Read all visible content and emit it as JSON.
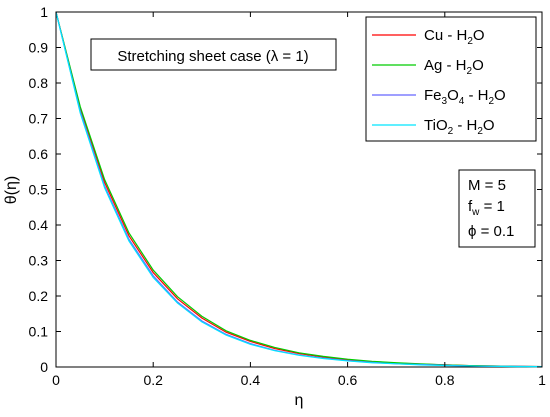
{
  "chart_data": {
    "type": "line",
    "xlabel": "η",
    "ylabel": "θ(η)",
    "xlim": [
      0,
      1
    ],
    "ylim": [
      0,
      1
    ],
    "xticks": [
      "0",
      "0.2",
      "0.4",
      "0.6",
      "0.8",
      "1"
    ],
    "yticks": [
      "0",
      "0.1",
      "0.2",
      "0.3",
      "0.4",
      "0.5",
      "0.6",
      "0.7",
      "0.8",
      "0.9",
      "1"
    ],
    "grid": false,
    "legend_position": "top-right",
    "annotation": "Stretching sheet case (λ = 1)",
    "parameters": {
      "M": "M = 5",
      "fw": "f",
      "fw_sub": "w",
      "fw_value": " = 1",
      "phi": "ϕ = 0.1"
    },
    "x": [
      0,
      0.05,
      0.1,
      0.15,
      0.2,
      0.25,
      0.3,
      0.35,
      0.4,
      0.45,
      0.5,
      0.55,
      0.6,
      0.65,
      0.7,
      0.75,
      0.8,
      0.85,
      0.9,
      0.95,
      1.0
    ],
    "series": [
      {
        "legend": [
          "Cu - H",
          "2",
          "O"
        ],
        "color": "#ff0000",
        "values": [
          1.0,
          0.728,
          0.52,
          0.37,
          0.266,
          0.192,
          0.138,
          0.098,
          0.072,
          0.052,
          0.038,
          0.028,
          0.02,
          0.015,
          0.011,
          0.008,
          0.006,
          0.004,
          0.003,
          0.002,
          0.001
        ]
      },
      {
        "legend": [
          "Ag - H",
          "2",
          "O"
        ],
        "color": "#00cc00",
        "values": [
          1.0,
          0.733,
          0.528,
          0.378,
          0.273,
          0.198,
          0.143,
          0.102,
          0.075,
          0.055,
          0.04,
          0.03,
          0.022,
          0.016,
          0.012,
          0.009,
          0.006,
          0.004,
          0.003,
          0.002,
          0.001
        ]
      },
      {
        "legend": [
          "Fe",
          "3",
          "O",
          "4",
          " - H",
          "2",
          "O"
        ],
        "color": "#6666ff",
        "values": [
          1.0,
          0.72,
          0.51,
          0.36,
          0.257,
          0.183,
          0.13,
          0.092,
          0.066,
          0.047,
          0.034,
          0.025,
          0.018,
          0.013,
          0.009,
          0.007,
          0.005,
          0.003,
          0.002,
          0.002,
          0.001
        ]
      },
      {
        "legend": [
          "TiO",
          "2",
          " - H",
          "2",
          "O"
        ],
        "color": "#00e5ff",
        "values": [
          1.0,
          0.715,
          0.505,
          0.355,
          0.252,
          0.18,
          0.127,
          0.09,
          0.064,
          0.046,
          0.033,
          0.024,
          0.017,
          0.012,
          0.009,
          0.006,
          0.004,
          0.003,
          0.002,
          0.001,
          0.001
        ]
      }
    ]
  }
}
